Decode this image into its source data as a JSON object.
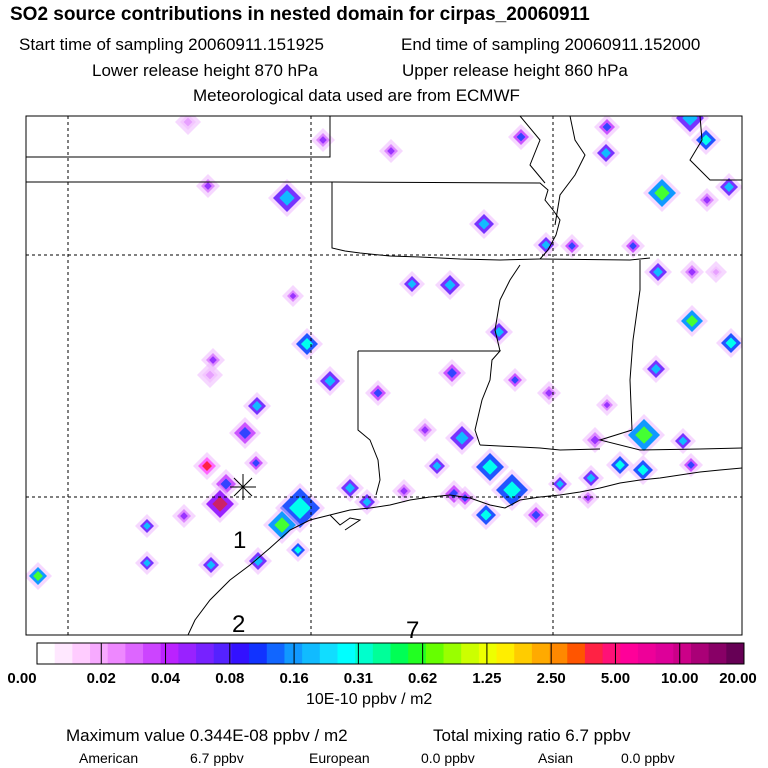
{
  "title": "SO2 source contributions in nested domain for cirpas_20060911",
  "header": {
    "start": "Start time of sampling 20060911.151925",
    "end": "End time of sampling 20060911.152000",
    "lower": "Lower release height  870 hPa",
    "upper": "Upper release height  860 hPa",
    "met": "Meteorological data used are from ECMWF"
  },
  "map": {
    "markers": [
      {
        "label": "1"
      },
      {
        "label": "2"
      },
      {
        "label": "7"
      }
    ],
    "receptor_symbol": "receptor-cross"
  },
  "chart_data": {
    "type": "heatmap",
    "title": "SO2 source contributions in nested domain for cirpas_20060911",
    "colorbar": {
      "tick_labels": [
        "0.00",
        "0.02",
        "0.04",
        "0.08",
        "0.16",
        "0.31",
        "0.62",
        "1.25",
        "2.50",
        "5.00",
        "10.00",
        "20.00"
      ],
      "unit_label": "10E-10 ppbv / m2",
      "range": [
        0.0,
        20.0
      ],
      "colors": [
        "#ffffff",
        "#ffe8ff",
        "#ffccff",
        "#f7aaff",
        "#ee88ff",
        "#dd66ff",
        "#cc44ff",
        "#bb22ff",
        "#9922ff",
        "#7722ff",
        "#5522ff",
        "#3311ff",
        "#1133ff",
        "#1166ff",
        "#1199ff",
        "#11bbff",
        "#11ddff",
        "#00ffff",
        "#00ffcc",
        "#00ff99",
        "#00ff55",
        "#22ff22",
        "#66ff00",
        "#99ff00",
        "#ccff00",
        "#eeff00",
        "#ffee00",
        "#ffcc00",
        "#ffaa00",
        "#ff8800",
        "#ff5500",
        "#ff2244",
        "#ff1177",
        "#ff0099",
        "#ee0099",
        "#dd0099",
        "#cc0088",
        "#aa0077",
        "#880066",
        "#660055"
      ]
    },
    "max_value": "0.344E-08",
    "total_mixing_ratio": "6.7"
  },
  "footer": {
    "maximum": "Maximum value  0.344E-08 ppbv / m2",
    "total": "Total mixing ratio       6.7 ppbv",
    "american_label": "American",
    "american_value": "6.7 ppbv",
    "european_label": "European",
    "european_value": "0.0 ppbv",
    "asian_label": "Asian",
    "asian_value": "0.0 ppbv"
  }
}
